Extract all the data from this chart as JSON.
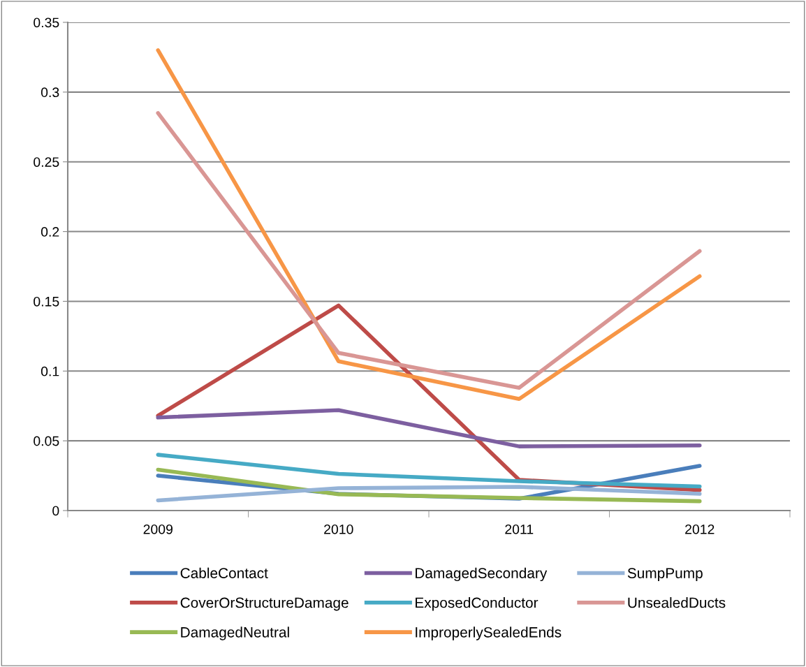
{
  "chart_data": {
    "type": "line",
    "categories": [
      "2009",
      "2010",
      "2011",
      "2012"
    ],
    "ylim": [
      0,
      0.35
    ],
    "yticks": [
      0,
      0.05,
      0.1,
      0.15,
      0.2,
      0.25,
      0.3,
      0.35
    ],
    "grid": "y",
    "legend": "bottom",
    "marker": "none",
    "line_style": "solid",
    "series": [
      {
        "name": "CableContact",
        "color": "#4a7ebb",
        "values": [
          0.025,
          0.012,
          0.0085,
          0.032
        ]
      },
      {
        "name": "CoverOrStructureDamage",
        "color": "#be4b48",
        "values": [
          0.068,
          0.147,
          0.022,
          0.0147
        ]
      },
      {
        "name": "DamagedNeutral",
        "color": "#98b954",
        "values": [
          0.0293,
          0.0117,
          0.009,
          0.0067
        ]
      },
      {
        "name": "DamagedSecondary",
        "color": "#7d5fa0",
        "values": [
          0.0667,
          0.072,
          0.046,
          0.0467
        ]
      },
      {
        "name": "ExposedConductor",
        "color": "#46aac5",
        "values": [
          0.04,
          0.0263,
          0.021,
          0.0173
        ]
      },
      {
        "name": "ImproperlySealedEnds",
        "color": "#f79646",
        "values": [
          0.33,
          0.107,
          0.08,
          0.168
        ]
      },
      {
        "name": "SumpPump",
        "color": "#95b3d7",
        "values": [
          0.0073,
          0.016,
          0.017,
          0.012
        ]
      },
      {
        "name": "UnsealedDucts",
        "color": "#d99694",
        "values": [
          0.285,
          0.113,
          0.088,
          0.186
        ]
      }
    ]
  }
}
